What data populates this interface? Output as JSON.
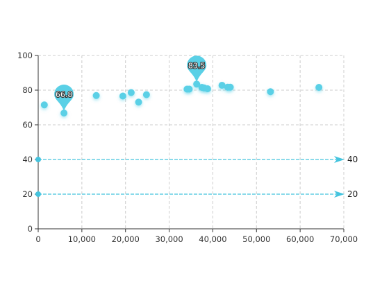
{
  "chart_data": {
    "type": "scatter",
    "title": "",
    "xlabel": "",
    "ylabel": "",
    "xlim": [
      0,
      70000
    ],
    "ylim": [
      0,
      100
    ],
    "x_ticks": [
      "0",
      "10,000",
      "20,000",
      "30,000",
      "40,000",
      "50,000",
      "60,000",
      "70,000"
    ],
    "x_tick_values": [
      0,
      10000,
      20000,
      30000,
      40000,
      50000,
      60000,
      70000
    ],
    "y_ticks": [
      "0",
      "20",
      "40",
      "60",
      "80",
      "100"
    ],
    "y_tick_values": [
      0,
      20,
      40,
      60,
      80,
      100
    ],
    "grid": true,
    "colors": {
      "series": "#5ad0e6",
      "markline": "#45c4de",
      "axis": "#333333",
      "grid": "#cccccc"
    },
    "points": [
      [
        1400,
        71.5
      ],
      [
        5900,
        66.8
      ],
      [
        13300,
        76.9
      ],
      [
        19400,
        76.6
      ],
      [
        21300,
        78.6
      ],
      [
        23000,
        73.1
      ],
      [
        24800,
        77.4
      ],
      [
        34100,
        80.6
      ],
      [
        34600,
        80.6
      ],
      [
        36300,
        83.5
      ],
      [
        37500,
        81.6
      ],
      [
        38000,
        81.3
      ],
      [
        38800,
        80.8
      ],
      [
        42100,
        82.8
      ],
      [
        43400,
        81.7
      ],
      [
        44000,
        81.7
      ],
      [
        53200,
        79.1
      ],
      [
        64300,
        81.6
      ]
    ],
    "mark_points": [
      {
        "label": "66.8",
        "x": 5900,
        "y": 66.8
      },
      {
        "label": "83.5",
        "x": 36300,
        "y": 83.5
      }
    ],
    "mark_lines": [
      {
        "label": "40",
        "y": 40
      },
      {
        "label": "20",
        "y": 20
      }
    ]
  }
}
